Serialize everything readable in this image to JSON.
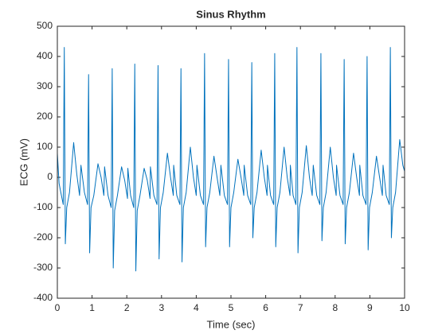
{
  "chart_data": {
    "type": "line",
    "title": "Sinus Rhythm",
    "xlabel": "Time (sec)",
    "ylabel": "ECG (mV)",
    "color": "#0072bd",
    "x": [
      0,
      0.05,
      0.1,
      0.17,
      0.2,
      0.23,
      0.27,
      0.35,
      0.47,
      0.56,
      0.64,
      0.68,
      0.78,
      0.87,
      0.9,
      0.93,
      0.97,
      1.05,
      1.17,
      1.26,
      1.34,
      1.36,
      1.46,
      1.55,
      1.58,
      1.61,
      1.65,
      1.73,
      1.85,
      1.94,
      2.02,
      2.03,
      2.11,
      2.2,
      2.23,
      2.26,
      2.3,
      2.38,
      2.5,
      2.59,
      2.67,
      2.68,
      2.78,
      2.87,
      2.9,
      2.93,
      2.97,
      3.05,
      3.17,
      3.26,
      3.34,
      3.35,
      3.44,
      3.53,
      3.56,
      3.59,
      3.63,
      3.71,
      3.83,
      3.92,
      4,
      4.02,
      4.12,
      4.21,
      4.24,
      4.27,
      4.31,
      4.39,
      4.51,
      4.6,
      4.68,
      4.71,
      4.81,
      4.9,
      4.93,
      4.96,
      5,
      5.08,
      5.2,
      5.29,
      5.37,
      5.38,
      5.48,
      5.57,
      5.6,
      5.63,
      5.67,
      5.75,
      5.87,
      5.96,
      6.04,
      6.05,
      6.14,
      6.23,
      6.26,
      6.29,
      6.33,
      6.41,
      6.53,
      6.62,
      6.7,
      6.71,
      6.79,
      6.87,
      6.9,
      6.93,
      6.97,
      7.05,
      7.17,
      7.26,
      7.34,
      7.37,
      7.47,
      7.56,
      7.59,
      7.62,
      7.66,
      7.74,
      7.86,
      7.95,
      8.03,
      8.04,
      8.14,
      8.23,
      8.26,
      8.29,
      8.33,
      8.41,
      8.53,
      8.62,
      8.7,
      8.71,
      8.8,
      8.89,
      8.92,
      8.95,
      8.99,
      9.07,
      9.19,
      9.28,
      9.36,
      9.38,
      9.47,
      9.56,
      9.59,
      9.62,
      9.66,
      9.74,
      9.86,
      9.95,
      10
    ],
    "values": [
      80,
      -20,
      -50,
      -90,
      430,
      -220,
      -100,
      -50,
      115,
      10,
      -60,
      40,
      -50,
      -90,
      340,
      -250,
      -100,
      -60,
      45,
      0,
      -60,
      35,
      -60,
      -100,
      360,
      -300,
      -110,
      -60,
      35,
      -10,
      -70,
      30,
      -60,
      -100,
      375,
      -310,
      -110,
      -60,
      30,
      -10,
      -70,
      35,
      -60,
      -90,
      370,
      -270,
      -100,
      -50,
      80,
      0,
      -60,
      40,
      -60,
      -90,
      360,
      -280,
      -100,
      -50,
      100,
      0,
      -60,
      40,
      -60,
      -90,
      410,
      -230,
      -100,
      -50,
      70,
      0,
      -60,
      40,
      -60,
      -90,
      390,
      -230,
      -100,
      -50,
      60,
      0,
      -60,
      40,
      -60,
      -90,
      380,
      -200,
      -100,
      -50,
      90,
      0,
      -60,
      40,
      -60,
      -90,
      410,
      -230,
      -100,
      -50,
      100,
      0,
      -60,
      40,
      -60,
      -90,
      430,
      -250,
      -100,
      -50,
      105,
      0,
      -60,
      40,
      -60,
      -90,
      410,
      -210,
      -100,
      -50,
      100,
      0,
      -60,
      40,
      -60,
      -90,
      390,
      -220,
      -100,
      -50,
      80,
      0,
      -60,
      40,
      -60,
      -90,
      400,
      -240,
      -100,
      -50,
      70,
      0,
      -60,
      40,
      -60,
      -90,
      430,
      -200,
      -100,
      -50,
      125,
      40,
      20
    ],
    "xlim": [
      0,
      10
    ],
    "xticks": [
      0,
      1,
      2,
      3,
      4,
      5,
      6,
      7,
      8,
      9,
      10
    ],
    "ylim": [
      -400,
      500
    ],
    "yticks": [
      -400,
      -300,
      -200,
      -100,
      0,
      100,
      200,
      300,
      400,
      500
    ],
    "grid": false
  }
}
